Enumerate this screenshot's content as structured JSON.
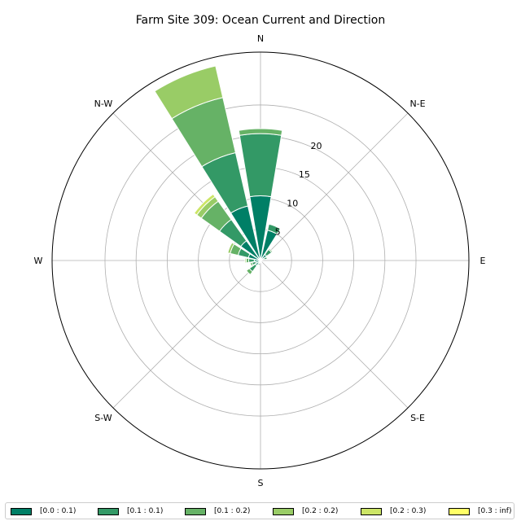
{
  "chart_data": {
    "type": "windrose",
    "title": "Farm Site 309: Ocean Current and Direction",
    "directions": [
      "N",
      "N-E",
      "E",
      "S-E",
      "S",
      "S-W",
      "W",
      "N-W"
    ],
    "radial_ticks": [
      "5",
      "10",
      "15",
      "20"
    ],
    "radial_max": 33.5,
    "sector_angles_deg": [
      0,
      22.5,
      45,
      67.5,
      90,
      112.5,
      135,
      157.5,
      180,
      202.5,
      225,
      247.5,
      270,
      292.5,
      315,
      337.5
    ],
    "bins": [
      {
        "label": "[0.0 : 0.1)",
        "color": "#007f66"
      },
      {
        "label": "[0.1 : 0.1)",
        "color": "#339966"
      },
      {
        "label": "[0.1 : 0.2)",
        "color": "#66b266"
      },
      {
        "label": "[0.2 : 0.2)",
        "color": "#99cc66"
      },
      {
        "label": "[0.2 : 0.3)",
        "color": "#cce566"
      },
      {
        "label": "[0.3 : inf)",
        "color": "#ffff66"
      }
    ],
    "sector_values": [
      [
        10.4,
        10.0,
        0.8,
        0,
        0,
        0
      ],
      [
        5.0,
        1.0,
        0,
        0,
        0,
        0
      ],
      [
        1.2,
        1.0,
        0.2,
        0,
        0,
        0
      ],
      [
        0.6,
        0.5,
        0,
        0,
        0,
        0
      ],
      [
        0.2,
        0,
        0,
        0,
        0,
        0
      ],
      [
        0.2,
        0,
        0,
        0,
        0,
        0
      ],
      [
        0.2,
        0,
        0,
        0,
        0,
        0
      ],
      [
        0.3,
        0.2,
        0,
        0,
        0,
        0
      ],
      [
        0.3,
        0,
        0,
        0,
        0,
        0
      ],
      [
        0.5,
        0.3,
        0,
        0,
        0,
        0
      ],
      [
        1.0,
        1.2,
        0.6,
        0,
        0,
        0
      ],
      [
        0.8,
        0.6,
        0.3,
        0,
        0,
        0
      ],
      [
        1.0,
        0.9,
        0.4,
        0.2,
        0,
        0
      ],
      [
        2.0,
        1.7,
        1.3,
        0.4,
        0,
        0
      ],
      [
        3.9,
        4.2,
        3.6,
        0.9,
        0.5,
        0
      ],
      [
        9.0,
        8.8,
        9.1,
        5.2,
        0,
        0
      ]
    ]
  }
}
